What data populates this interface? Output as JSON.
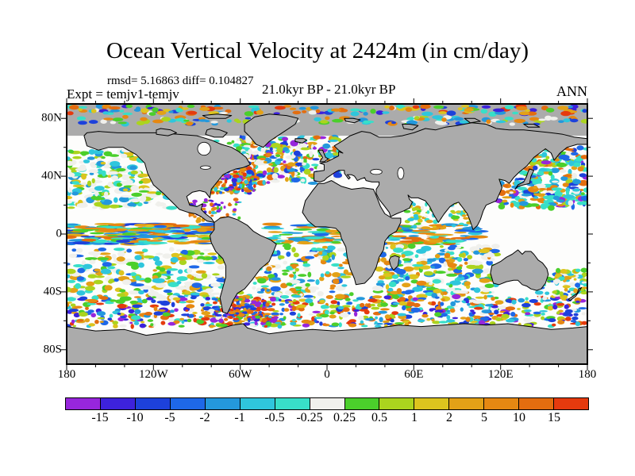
{
  "header": {
    "title": "Ocean Vertical Velocity at 2424m (in cm/day)",
    "stats": "rmsd= 5.16863 diff= 0.104827",
    "experiment": "Expt = temjv1-temjv",
    "period": "21.0kyr BP - 21.0kyr BP",
    "season": "ANN"
  },
  "chart_data": {
    "type": "heatmap",
    "title": "Ocean Vertical Velocity at 2424m (in cm/day)",
    "field": "ocean vertical velocity difference, annual mean (ANN)",
    "experiment": "temjv1-temjv",
    "period": "21.0kyr BP - 21.0kyr BP",
    "depth_m": 2424,
    "units": "cm/day",
    "rmsd": 5.16863,
    "diff": 0.104827,
    "projection": "equirectangular",
    "lon_range": [
      -180,
      180
    ],
    "lat_range": [
      -90,
      90
    ],
    "x_ticks": [
      "180",
      "120W",
      "60W",
      "0",
      "60E",
      "120E",
      "180"
    ],
    "x_tick_lons": [
      -180,
      -120,
      -60,
      0,
      60,
      120,
      180
    ],
    "y_ticks": [
      "80N",
      "40N",
      "0",
      "40S",
      "80S"
    ],
    "y_tick_lats": [
      80,
      40,
      0,
      -40,
      -80
    ],
    "grid": false,
    "legend_position": "bottom colorbar",
    "colorbar": {
      "labels": [
        "-15",
        "-10",
        "-5",
        "-2",
        "-1",
        "-0.5",
        "-0.25",
        "0.25",
        "0.5",
        "1",
        "2",
        "5",
        "10",
        "15"
      ],
      "levels": [
        -15,
        -10,
        -5,
        -2,
        -1,
        -0.5,
        -0.25,
        0.25,
        0.5,
        1,
        2,
        5,
        10,
        15
      ],
      "colors": [
        "#9726DC",
        "#3D22DC",
        "#1D41DB",
        "#1E68E8",
        "#2498DC",
        "#2FC6DC",
        "#38DFC8",
        "#F0F0EC",
        "#4BCF2B",
        "#ABD41E",
        "#DCC41E",
        "#E3A117",
        "#E68812",
        "#E36D0F",
        "#E53A0E"
      ]
    },
    "land_color": "#ababab",
    "ocean_color": "#fdfdfc",
    "arctic_gray_lat": 68,
    "speckle_zones": [
      {
        "name": "arctic-band-top",
        "lon": [
          -180,
          180
        ],
        "lat": [
          83,
          88.5
        ],
        "n": 150,
        "rx": [
          1.5,
          4
        ],
        "ry": [
          0.8,
          1.8
        ],
        "colors": [
          1,
          2,
          4,
          5,
          6,
          8,
          10,
          11,
          12,
          13,
          14,
          7
        ]
      },
      {
        "name": "arctic-band-2",
        "lon": [
          -180,
          180
        ],
        "lat": [
          76,
          81
        ],
        "n": 110,
        "rx": [
          1.5,
          4
        ],
        "ry": [
          0.8,
          1.8
        ],
        "colors": [
          4,
          5,
          6,
          8,
          9,
          7,
          7,
          12,
          2
        ]
      },
      {
        "name": "n-atlantic",
        "lon": [
          -62,
          8
        ],
        "lat": [
          35,
          67
        ],
        "n": 300,
        "rx": [
          1,
          3.5
        ],
        "ry": [
          0.8,
          2.2
        ],
        "colors": [
          2,
          3,
          4,
          5,
          6,
          8,
          9,
          11,
          12,
          13,
          7,
          7,
          7,
          0
        ]
      },
      {
        "name": "us-east-coast",
        "lon": [
          -80,
          -50
        ],
        "lat": [
          28,
          46
        ],
        "n": 130,
        "rx": [
          0.8,
          2.5
        ],
        "ry": [
          0.7,
          1.8
        ],
        "colors": [
          0,
          1,
          2,
          3,
          11,
          12,
          13,
          14,
          8,
          5
        ]
      },
      {
        "name": "ne-pacific",
        "lon": [
          -180,
          -105
        ],
        "lat": [
          18,
          58
        ],
        "n": 260,
        "rx": [
          1.2,
          4
        ],
        "ry": [
          0.8,
          2.2
        ],
        "colors": [
          5,
          6,
          8,
          9,
          7,
          7,
          7,
          7,
          4,
          10
        ]
      },
      {
        "name": "eq-pacific",
        "lon": [
          -180,
          -75
        ],
        "lat": [
          -7,
          7
        ],
        "n": 200,
        "rx": [
          3,
          9
        ],
        "ry": [
          0.5,
          1.2
        ],
        "colors": [
          11,
          12,
          13,
          2,
          3,
          4,
          5,
          6,
          8,
          10
        ]
      },
      {
        "name": "eq-atlantic-indian",
        "lon": [
          -40,
          105
        ],
        "lat": [
          -7,
          7
        ],
        "n": 160,
        "rx": [
          3,
          8
        ],
        "ry": [
          0.5,
          1.2
        ],
        "colors": [
          11,
          12,
          13,
          3,
          4,
          5,
          6,
          8
        ]
      },
      {
        "name": "s-pacific",
        "lon": [
          -180,
          -72
        ],
        "lat": [
          -45,
          -10
        ],
        "n": 240,
        "rx": [
          1.5,
          4.5
        ],
        "ry": [
          0.8,
          2
        ],
        "colors": [
          5,
          6,
          8,
          9,
          7,
          7,
          7,
          10,
          11,
          3
        ]
      },
      {
        "name": "s-atlantic",
        "lon": [
          -68,
          18
        ],
        "lat": [
          -45,
          -8
        ],
        "n": 200,
        "rx": [
          1.2,
          4
        ],
        "ry": [
          0.8,
          2
        ],
        "colors": [
          5,
          6,
          8,
          9,
          7,
          7,
          11,
          12,
          3,
          4
        ]
      },
      {
        "name": "indian",
        "lon": [
          35,
          118
        ],
        "lat": [
          -45,
          -8
        ],
        "n": 260,
        "rx": [
          1.2,
          4
        ],
        "ry": [
          0.8,
          2
        ],
        "colors": [
          5,
          6,
          8,
          9,
          10,
          11,
          12,
          7,
          7,
          4,
          3
        ]
      },
      {
        "name": "southern-ocean",
        "lon": [
          -180,
          180
        ],
        "lat": [
          -64,
          -43
        ],
        "n": 700,
        "rx": [
          1,
          3.5
        ],
        "ry": [
          0.7,
          1.8
        ],
        "colors": [
          0,
          1,
          2,
          3,
          4,
          5,
          6,
          8,
          9,
          10,
          11,
          12,
          13,
          14,
          7
        ]
      },
      {
        "name": "nw-pacific",
        "lon": [
          118,
          180
        ],
        "lat": [
          18,
          60
        ],
        "n": 300,
        "rx": [
          1.2,
          4
        ],
        "ry": [
          0.8,
          2.2
        ],
        "colors": [
          0,
          2,
          3,
          4,
          5,
          6,
          6,
          6,
          8,
          9,
          11,
          12,
          13,
          7
        ]
      },
      {
        "name": "drake-passage",
        "lon": [
          -78,
          -40
        ],
        "lat": [
          -60,
          -44
        ],
        "n": 140,
        "rx": [
          0.8,
          2.5
        ],
        "ry": [
          0.7,
          1.6
        ],
        "colors": [
          0,
          1,
          13,
          14,
          12,
          2,
          3,
          8,
          11
        ]
      },
      {
        "name": "caribbean",
        "lon": [
          -95,
          -60
        ],
        "lat": [
          8,
          24
        ],
        "n": 70,
        "rx": [
          0.8,
          2
        ],
        "ry": [
          0.6,
          1.4
        ],
        "colors": [
          0,
          1,
          11,
          12,
          13,
          5,
          8
        ]
      },
      {
        "name": "hudson-labrador",
        "lon": [
          -95,
          -55
        ],
        "lat": [
          52,
          66
        ],
        "n": 80,
        "rx": [
          1,
          2.5
        ],
        "ry": [
          0.7,
          1.5
        ],
        "colors": [
          5,
          6,
          8,
          9,
          7
        ]
      },
      {
        "name": "arabian-bengal",
        "lon": [
          55,
          100
        ],
        "lat": [
          5,
          22
        ],
        "n": 90,
        "rx": [
          1,
          2.5
        ],
        "ry": [
          0.7,
          1.6
        ],
        "colors": [
          5,
          6,
          8,
          9,
          10,
          11,
          7
        ]
      },
      {
        "name": "tasman-nz",
        "lon": [
          145,
          180
        ],
        "lat": [
          -45,
          -25
        ],
        "n": 90,
        "rx": [
          1,
          3
        ],
        "ry": [
          0.8,
          1.8
        ],
        "colors": [
          5,
          6,
          8,
          9,
          10,
          11,
          7,
          3
        ]
      }
    ]
  }
}
